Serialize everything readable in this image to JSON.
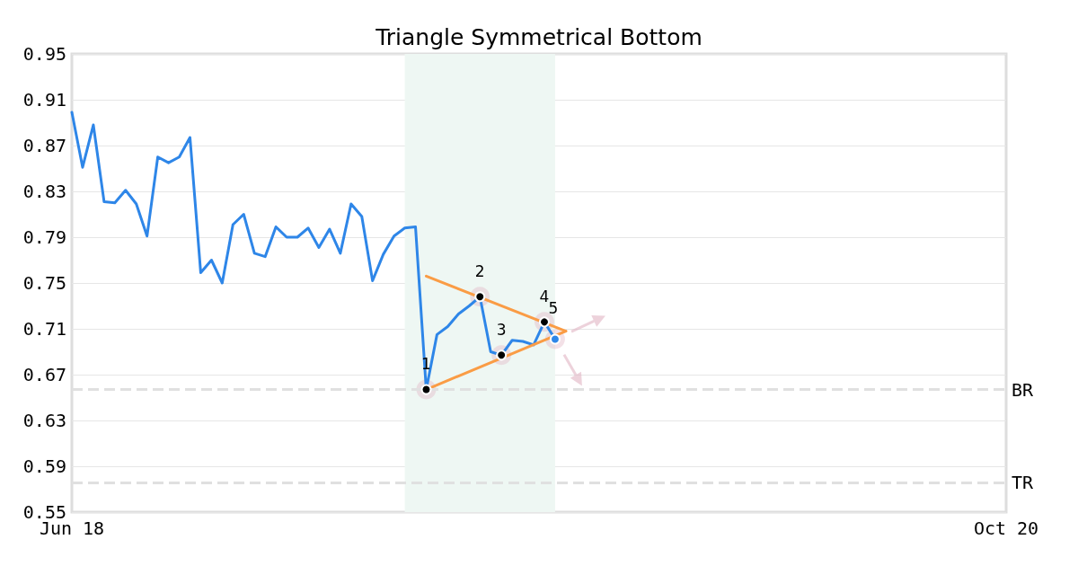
{
  "chart_data": {
    "type": "line",
    "title": "Triangle Symmetrical Bottom",
    "categories": [
      "Jun 18",
      null,
      null,
      null,
      null,
      null,
      null,
      null,
      null,
      null,
      null,
      null,
      null,
      null,
      null,
      null,
      null,
      null,
      null,
      null,
      null,
      null,
      null,
      null,
      null,
      null,
      null,
      null,
      null,
      null,
      null,
      null,
      null,
      null,
      null,
      null,
      null,
      null,
      null,
      null,
      null,
      null,
      null,
      null,
      null,
      null,
      null,
      null,
      null,
      null,
      null,
      null,
      null,
      null,
      null,
      null,
      null,
      null,
      null,
      null,
      null,
      null,
      null,
      null,
      null,
      null,
      null,
      null,
      null,
      null,
      null,
      null,
      null,
      null,
      null,
      null,
      null,
      null,
      null,
      null,
      null,
      null,
      null,
      null,
      null,
      null,
      null,
      "Oct 20"
    ],
    "series": [
      {
        "color": "#2e86e8",
        "values": [
          0.899,
          0.851,
          0.888,
          0.821,
          0.82,
          0.831,
          0.819,
          0.791,
          0.86,
          0.855,
          0.86,
          0.877,
          0.759,
          0.77,
          0.75,
          0.801,
          0.81,
          0.776,
          0.773,
          0.799,
          0.79,
          0.79,
          0.798,
          0.781,
          0.797,
          0.776,
          0.819,
          0.808,
          0.752,
          0.775,
          0.791,
          0.798,
          0.799,
          0.657,
          0.705,
          0.712,
          0.723,
          0.73,
          0.738,
          0.69,
          0.687,
          0.7,
          0.699,
          0.696,
          0.716,
          0.701,
          null,
          null,
          null,
          null,
          null,
          null,
          null,
          null,
          null,
          null,
          null,
          null,
          null,
          null,
          null,
          null,
          null,
          null,
          null,
          null,
          null,
          null,
          null,
          null,
          null,
          null,
          null,
          null,
          null,
          null,
          null,
          null,
          null,
          null,
          null,
          null,
          null,
          null,
          null,
          null,
          null,
          null
        ]
      },
      {
        "color": "#fa9c45",
        "values": [
          null,
          null,
          null,
          null,
          null,
          null,
          null,
          null,
          null,
          null,
          null,
          null,
          null,
          null,
          null,
          null,
          null,
          null,
          null,
          null,
          null,
          null,
          null,
          null,
          null,
          null,
          null,
          null,
          null,
          null,
          null,
          null,
          null,
          0.756,
          null,
          null,
          null,
          null,
          null,
          null,
          null,
          null,
          null,
          null,
          null,
          null,
          0.708,
          null,
          null,
          null,
          null,
          null,
          null,
          null,
          null,
          null,
          null,
          null,
          null,
          null,
          null,
          null,
          null,
          null,
          null,
          null,
          null,
          null,
          null,
          null,
          null,
          null,
          null,
          null,
          null,
          null,
          null,
          null,
          null,
          null,
          null,
          null,
          null,
          null,
          null,
          null,
          null,
          null
        ]
      },
      {
        "color": "#fa9c45",
        "values": [
          null,
          null,
          null,
          null,
          null,
          null,
          null,
          null,
          null,
          null,
          null,
          null,
          null,
          null,
          null,
          null,
          null,
          null,
          null,
          null,
          null,
          null,
          null,
          null,
          null,
          null,
          null,
          null,
          null,
          null,
          null,
          null,
          null,
          0.657,
          null,
          null,
          null,
          null,
          null,
          null,
          null,
          null,
          null,
          null,
          null,
          null,
          0.708,
          null,
          null,
          null,
          null,
          null,
          null,
          null,
          null,
          null,
          null,
          null,
          null,
          null,
          null,
          null,
          null,
          null,
          null,
          null,
          null,
          null,
          null,
          null,
          null,
          null,
          null,
          null,
          null,
          null,
          null,
          null,
          null,
          null,
          null,
          null,
          null,
          null,
          null,
          null,
          null,
          null
        ]
      },
      {
        "type": "scatter",
        "marker": "circle",
        "name": "1",
        "color": "#000000",
        "values": [
          null,
          null,
          null,
          null,
          null,
          null,
          null,
          null,
          null,
          null,
          null,
          null,
          null,
          null,
          null,
          null,
          null,
          null,
          null,
          null,
          null,
          null,
          null,
          null,
          null,
          null,
          null,
          null,
          null,
          null,
          null,
          null,
          null,
          0.657,
          null,
          null,
          null,
          null,
          null,
          null,
          null,
          null,
          null,
          null,
          null,
          null,
          null,
          null,
          null,
          null,
          null,
          null,
          null,
          null,
          null,
          null,
          null,
          null,
          null,
          null,
          null,
          null,
          null,
          null,
          null,
          null,
          null,
          null,
          null,
          null,
          null,
          null,
          null,
          null,
          null,
          null,
          null,
          null,
          null,
          null,
          null,
          null,
          null,
          null,
          null,
          null,
          null,
          null
        ]
      },
      {
        "type": "scatter",
        "marker": "circle",
        "name": "2",
        "color": "#000000",
        "values": [
          null,
          null,
          null,
          null,
          null,
          null,
          null,
          null,
          null,
          null,
          null,
          null,
          null,
          null,
          null,
          null,
          null,
          null,
          null,
          null,
          null,
          null,
          null,
          null,
          null,
          null,
          null,
          null,
          null,
          null,
          null,
          null,
          null,
          null,
          null,
          null,
          null,
          null,
          0.738,
          null,
          null,
          null,
          null,
          null,
          null,
          null,
          null,
          null,
          null,
          null,
          null,
          null,
          null,
          null,
          null,
          null,
          null,
          null,
          null,
          null,
          null,
          null,
          null,
          null,
          null,
          null,
          null,
          null,
          null,
          null,
          null,
          null,
          null,
          null,
          null,
          null,
          null,
          null,
          null,
          null,
          null,
          null,
          null,
          null,
          null,
          null,
          null,
          null
        ]
      },
      {
        "type": "scatter",
        "marker": "circle",
        "name": "3",
        "color": "#000000",
        "values": [
          null,
          null,
          null,
          null,
          null,
          null,
          null,
          null,
          null,
          null,
          null,
          null,
          null,
          null,
          null,
          null,
          null,
          null,
          null,
          null,
          null,
          null,
          null,
          null,
          null,
          null,
          null,
          null,
          null,
          null,
          null,
          null,
          null,
          null,
          null,
          null,
          null,
          null,
          null,
          null,
          0.687,
          null,
          null,
          null,
          null,
          null,
          null,
          null,
          null,
          null,
          null,
          null,
          null,
          null,
          null,
          null,
          null,
          null,
          null,
          null,
          null,
          null,
          null,
          null,
          null,
          null,
          null,
          null,
          null,
          null,
          null,
          null,
          null,
          null,
          null,
          null,
          null,
          null,
          null,
          null,
          null,
          null,
          null,
          null,
          null,
          null,
          null,
          null
        ]
      },
      {
        "type": "scatter",
        "marker": "circle",
        "name": "4",
        "color": "#000000",
        "values": [
          null,
          null,
          null,
          null,
          null,
          null,
          null,
          null,
          null,
          null,
          null,
          null,
          null,
          null,
          null,
          null,
          null,
          null,
          null,
          null,
          null,
          null,
          null,
          null,
          null,
          null,
          null,
          null,
          null,
          null,
          null,
          null,
          null,
          null,
          null,
          null,
          null,
          null,
          null,
          null,
          null,
          null,
          null,
          null,
          0.716,
          null,
          null,
          null,
          null,
          null,
          null,
          null,
          null,
          null,
          null,
          null,
          null,
          null,
          null,
          null,
          null,
          null,
          null,
          null,
          null,
          null,
          null,
          null,
          null,
          null,
          null,
          null,
          null,
          null,
          null,
          null,
          null,
          null,
          null,
          null,
          null,
          null,
          null,
          null,
          null,
          null,
          null,
          null
        ]
      },
      {
        "type": "scatter",
        "marker": "circle",
        "name": "5",
        "color": "#2e86e8",
        "values": [
          null,
          null,
          null,
          null,
          null,
          null,
          null,
          null,
          null,
          null,
          null,
          null,
          null,
          null,
          null,
          null,
          null,
          null,
          null,
          null,
          null,
          null,
          null,
          null,
          null,
          null,
          null,
          null,
          null,
          null,
          null,
          null,
          null,
          null,
          null,
          null,
          null,
          null,
          null,
          null,
          null,
          null,
          null,
          null,
          null,
          0.701,
          null,
          null,
          null,
          null,
          null,
          null,
          null,
          null,
          null,
          null,
          null,
          null,
          null,
          null,
          null,
          null,
          null,
          null,
          null,
          null,
          null,
          null,
          null,
          null,
          null,
          null,
          null,
          null,
          null,
          null,
          null,
          null,
          null,
          null,
          null,
          null,
          null,
          null,
          null,
          null,
          null,
          null
        ]
      }
    ],
    "ylim": [
      0.55,
      0.95
    ],
    "yticks": [
      0.55,
      0.59,
      0.63,
      0.67,
      0.71,
      0.75,
      0.79,
      0.83,
      0.87,
      0.91,
      0.95
    ],
    "grid": "y",
    "legend": false,
    "ref_lines": [
      {
        "axis": "y",
        "value": 0.657,
        "label": "BR",
        "color": "#e0e0e0",
        "line_style": "dashed"
      },
      {
        "axis": "y",
        "value": 0.576,
        "label": "TR",
        "color": "#e0e0e0",
        "line_style": "dashed"
      }
    ]
  }
}
